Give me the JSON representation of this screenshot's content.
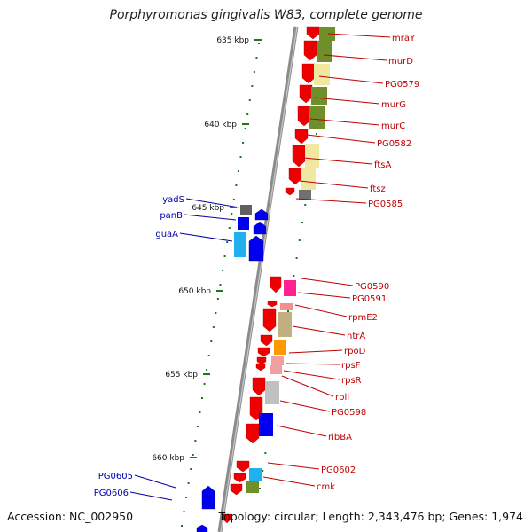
{
  "title": "Porphyromonas gingivalis W83, complete genome",
  "footer": {
    "accession": "Accession: NC_002950",
    "summary": "Topology: circular; Length: 2,343,476 bp; Genes: 1,974"
  },
  "scale": {
    "ticks": [
      {
        "kbp": 635,
        "label": "635 kbp"
      },
      {
        "kbp": 640,
        "label": "640 kbp"
      },
      {
        "kbp": 645,
        "label": "645 kbp"
      },
      {
        "kbp": 650,
        "label": "650 kbp"
      },
      {
        "kbp": 655,
        "label": "655 kbp"
      },
      {
        "kbp": 660,
        "label": "660 kbp"
      }
    ]
  },
  "colors": {
    "forward_label": "#c00000",
    "reverse_label": "#0000aa",
    "cds_forward": "#ee0000",
    "cds_reverse": "#0000ee",
    "backbone": "#8c8c8c",
    "tick": "#1a7a1a"
  },
  "forward_genes": [
    {
      "label": "mraY"
    },
    {
      "label": "murD"
    },
    {
      "label": "PG0579"
    },
    {
      "label": "murG"
    },
    {
      "label": "murC"
    },
    {
      "label": "PG0582"
    },
    {
      "label": "ftsA"
    },
    {
      "label": "ftsz"
    },
    {
      "label": "PG0585"
    },
    {
      "label": "PG0590"
    },
    {
      "label": "PG0591"
    },
    {
      "label": "rpmE2"
    },
    {
      "label": "htrA"
    },
    {
      "label": "rpoD"
    },
    {
      "label": "rpsF"
    },
    {
      "label": "rpsR"
    },
    {
      "label": "rplI"
    },
    {
      "label": "PG0598"
    },
    {
      "label": "ribBA"
    },
    {
      "label": "PG0602"
    },
    {
      "label": "cmk"
    }
  ],
  "reverse_genes": [
    {
      "label": "yadS"
    },
    {
      "label": "panB"
    },
    {
      "label": "guaA"
    },
    {
      "label": "PG0605"
    },
    {
      "label": "PG0606"
    }
  ]
}
